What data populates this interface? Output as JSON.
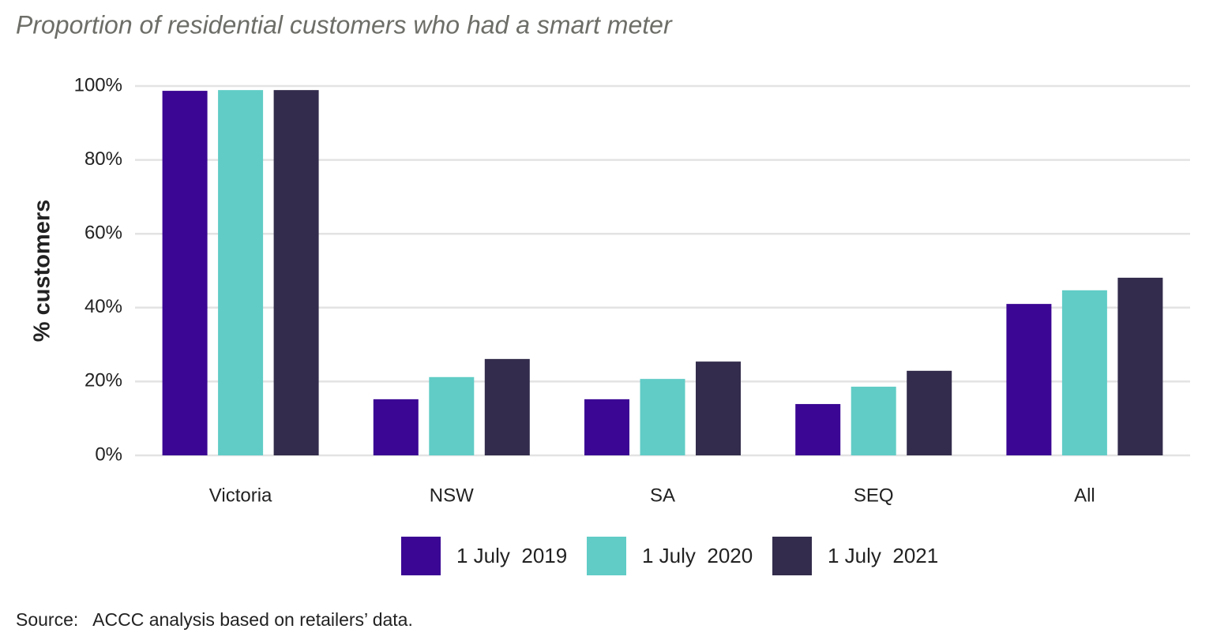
{
  "chart_data": {
    "type": "bar",
    "title": "Proportion of residential customers who had a smart meter",
    "y_label": "% customers",
    "categories": [
      "Victoria",
      "NSW",
      "SA",
      "SEQ",
      "All"
    ],
    "series": [
      {
        "name": "1 July  2019",
        "color": "#3a0693",
        "values": [
          98.7,
          15.2,
          15.2,
          13.9,
          41.0
        ]
      },
      {
        "name": "1 July  2020",
        "color": "#61ccc6",
        "values": [
          98.9,
          21.2,
          20.7,
          18.6,
          44.7
        ]
      },
      {
        "name": "1 July  2021",
        "color": "#332c4c",
        "values": [
          98.9,
          26.1,
          25.4,
          22.9,
          48.1
        ]
      }
    ],
    "ylim": [
      0,
      100
    ],
    "yticks": [
      {
        "value": 0,
        "label": "0%"
      },
      {
        "value": 20,
        "label": "20%"
      },
      {
        "value": 40,
        "label": "40%"
      },
      {
        "value": 60,
        "label": "60%"
      },
      {
        "value": 80,
        "label": "80%"
      },
      {
        "value": 100,
        "label": "100%"
      }
    ],
    "grid": true,
    "legend": "bottom",
    "source": "Source:   ACCC analysis based on retailers’ data."
  }
}
